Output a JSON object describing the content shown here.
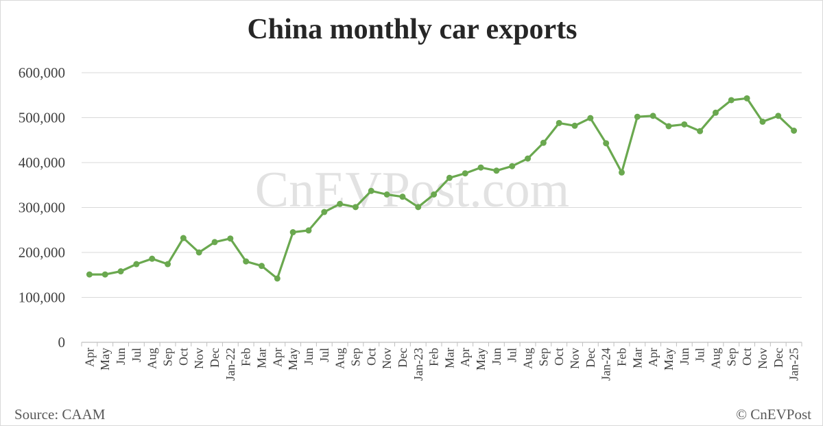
{
  "chart_data": {
    "type": "line",
    "title": "China monthly car exports",
    "xlabel": "",
    "ylabel": "",
    "ylim": [
      0,
      600000
    ],
    "yticks": [
      "600,000",
      "500,000",
      "400,000",
      "300,000",
      "200,000",
      "100,000",
      "0"
    ],
    "ytick_values": [
      600000,
      500000,
      400000,
      300000,
      200000,
      100000,
      0
    ],
    "grid": true,
    "legend": "none",
    "categories": [
      "Apr",
      "May",
      "Jun",
      "Jul",
      "Aug",
      "Sep",
      "Oct",
      "Nov",
      "Dec",
      "Jan-22",
      "Feb",
      "Mar",
      "Apr",
      "May",
      "Jun",
      "Jul",
      "Aug",
      "Sep",
      "Oct",
      "Nov",
      "Dec",
      "Jan-23",
      "Feb",
      "Mar",
      "Apr",
      "May",
      "Jun",
      "Jul",
      "Aug",
      "Sep",
      "Oct",
      "Nov",
      "Dec",
      "Jan-24",
      "Feb",
      "Mar",
      "Apr",
      "May",
      "Jun",
      "Jul",
      "Aug",
      "Sep",
      "Oct",
      "Nov",
      "Dec",
      "Jan-25"
    ],
    "series": [
      {
        "color": "#6aa84f",
        "values": [
          151000,
          151000,
          158000,
          174000,
          186000,
          174000,
          232000,
          200000,
          223000,
          231000,
          180000,
          170000,
          142000,
          245000,
          249000,
          290000,
          308000,
          301000,
          337000,
          329000,
          324000,
          301000,
          329000,
          366000,
          376000,
          389000,
          382000,
          392000,
          409000,
          444000,
          488000,
          482000,
          499000,
          443000,
          378000,
          502000,
          504000,
          481000,
          485000,
          470000,
          511000,
          539000,
          543000,
          491000,
          504000,
          471000
        ]
      }
    ]
  },
  "watermark": "CnEVPost.com",
  "footer": {
    "source": "Source: CAAM",
    "credit": "© CnEVPost"
  },
  "colors": {
    "line": "#6aa84f",
    "grid": "#d9d9d9",
    "axis": "#bfbfbf"
  }
}
